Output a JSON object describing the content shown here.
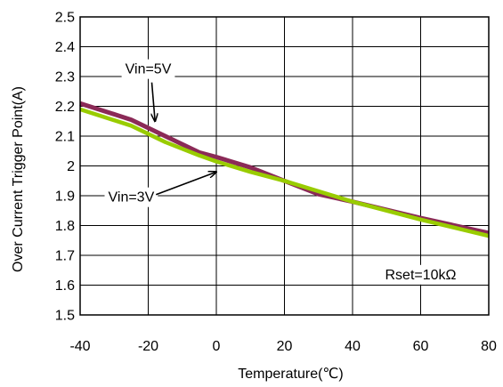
{
  "chart_data": {
    "type": "line",
    "xlabel": "Temperature(℃)",
    "ylabel": "Over Current Trigger Point(A)",
    "xlim": [
      -40,
      80
    ],
    "ylim": [
      1.5,
      2.5
    ],
    "xticks": [
      "-40",
      "-20",
      "0",
      "20",
      "40",
      "60",
      "80"
    ],
    "yticks": [
      "1.5",
      "1.6",
      "1.7",
      "1.8",
      "1.9",
      "2",
      "2.1",
      "2.2",
      "2.3",
      "2.4",
      "2.5"
    ],
    "grid": true,
    "series": [
      {
        "name": "Vin=5V",
        "color": "#8b2a57",
        "x": [
          -40,
          -25,
          -15,
          -5,
          0,
          10,
          20,
          30,
          40,
          60,
          80
        ],
        "y": [
          2.21,
          2.155,
          2.1,
          2.045,
          2.03,
          1.995,
          1.95,
          1.905,
          1.88,
          1.825,
          1.775
        ]
      },
      {
        "name": "Vin=3V",
        "color": "#99cc00",
        "x": [
          -40,
          -25,
          -15,
          -5,
          0,
          10,
          20,
          30,
          40,
          60,
          80
        ],
        "y": [
          2.19,
          2.135,
          2.08,
          2.035,
          2.015,
          1.98,
          1.95,
          1.915,
          1.88,
          1.82,
          1.765
        ]
      }
    ],
    "annotations": [
      {
        "text": "Vin=5V",
        "x": -20,
        "y": 2.31,
        "arrow_to": [
          -18,
          2.15
        ]
      },
      {
        "text": "Vin=3V",
        "x": -25,
        "y": 1.88,
        "arrow_to": [
          0,
          1.98
        ]
      },
      {
        "text": "Rset=10kΩ",
        "x": 60,
        "y": 1.62
      }
    ]
  }
}
